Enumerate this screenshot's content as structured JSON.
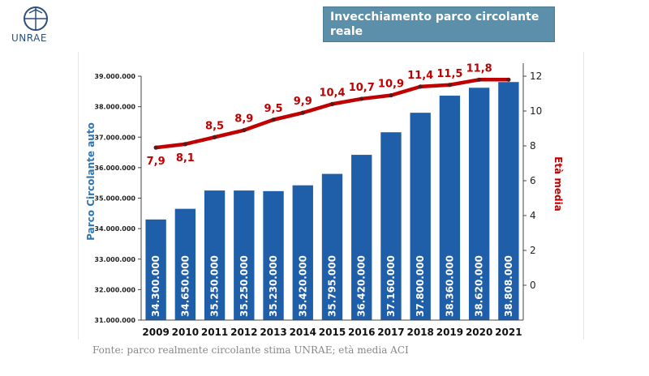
{
  "logo": {
    "name": "UNRAE-logo",
    "text": "UNRAE"
  },
  "title": "Invecchiamento parco circolante reale",
  "footer": "Fonte:  parco realmente circolante stima UNRAE; età media ACI",
  "colors": {
    "bar": "#1f5ea8",
    "line": "#c00000",
    "marker": "#5a1a1a",
    "title_bg": "#5b8faa"
  },
  "chart_data": {
    "type": "bar",
    "categories": [
      "2009",
      "2010",
      "2011",
      "2012",
      "2013",
      "2014",
      "2015",
      "2016",
      "2017",
      "2018",
      "2019",
      "2020",
      "2021"
    ],
    "series": [
      {
        "name": "Parco Circolante auto",
        "chart_type": "bar",
        "axis": "left",
        "values": [
          34300000,
          34650000,
          35250000,
          35250000,
          35230000,
          35420000,
          35795000,
          36420000,
          37160000,
          37800000,
          38360000,
          38620000,
          38808000
        ],
        "labels": [
          "34.300.000",
          "34.650.000",
          "35.250.000",
          "35.250.000",
          "35.230.000",
          "35.420.000",
          "35.795.000",
          "36.420.000",
          "37.160.000",
          "37.800.000",
          "38.360.000",
          "38.620.000",
          "38.808.000"
        ]
      },
      {
        "name": "Età media",
        "chart_type": "line",
        "axis": "right",
        "values": [
          7.9,
          8.1,
          8.5,
          8.9,
          9.5,
          9.9,
          10.4,
          10.7,
          10.9,
          11.4,
          11.5,
          11.8,
          11.8
        ],
        "labels": [
          "7,9",
          "8,1",
          "8,5",
          "8,9",
          "9,5",
          "9,9",
          "10,4",
          "10,7",
          "10,9",
          "11,4",
          "11,5",
          "11,8",
          ""
        ]
      }
    ],
    "ylabel": "Parco Circolante auto",
    "y2label": "Età media",
    "ylim": [
      31000000,
      39000000
    ],
    "y2lim": [
      -2,
      12
    ],
    "yticks": [
      "31.000.000",
      "32.000.000",
      "33.000.000",
      "34.000.000",
      "35.000.000",
      "36.000.000",
      "37.000.000",
      "38.000.000",
      "39.000.000"
    ],
    "y2ticks": [
      "0",
      "2",
      "4",
      "6",
      "8",
      "10",
      "12"
    ],
    "grid": false,
    "legend": "none"
  }
}
